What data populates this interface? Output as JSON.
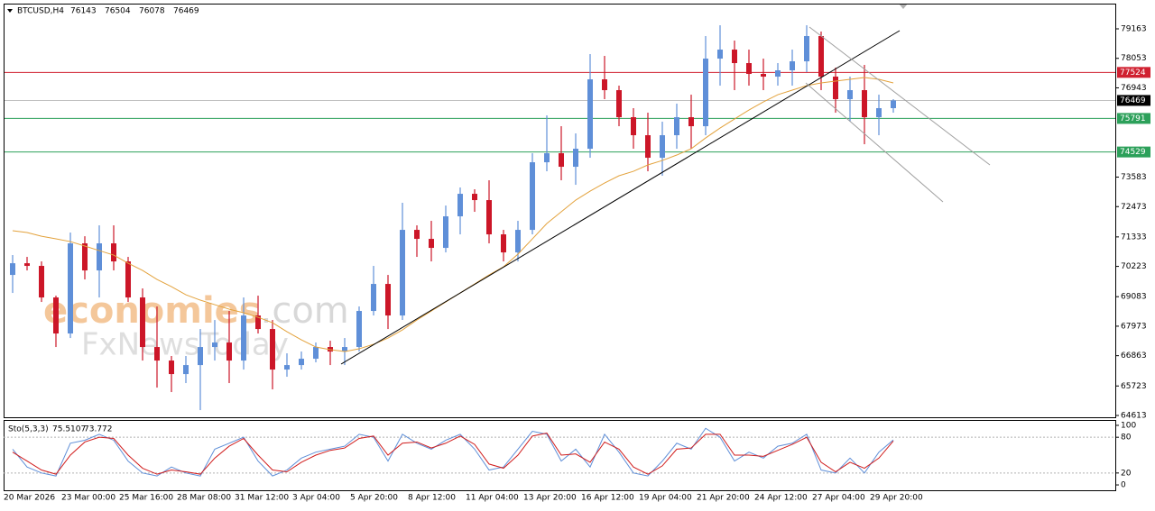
{
  "chart_data": [
    {
      "type": "candlestick",
      "title": "BTCUSD,H4",
      "header_values": [
        76143,
        76504,
        76078,
        76469
      ],
      "categories": [
        "20 Mar 2026",
        null,
        null,
        null,
        "23 Mar 00:00",
        null,
        null,
        null,
        "25 Mar 16:00",
        null,
        null,
        null,
        "28 Mar 08:00",
        null,
        null,
        null,
        "31 Mar 12:00",
        null,
        null,
        null,
        "3 Apr 04:00",
        null,
        null,
        null,
        "5 Apr 20:00",
        null,
        null,
        null,
        "8 Apr 12:00",
        null,
        null,
        null,
        "11 Apr 04:00",
        null,
        null,
        null,
        "13 Apr 20:00",
        null,
        null,
        null,
        "16 Apr 12:00",
        null,
        null,
        null,
        "19 Apr 04:00",
        null,
        null,
        null,
        "21 Apr 20:00",
        null,
        null,
        null,
        "24 Apr 12:00",
        null,
        null,
        null,
        "27 Apr 04:00",
        null,
        null,
        null,
        "29 Apr 20:00",
        null
      ],
      "open": [
        69902,
        70342,
        70242,
        69054,
        67698,
        71090,
        70072,
        71090,
        70411,
        69054,
        67189,
        66680,
        66171,
        66510,
        67189,
        67358,
        66680,
        68376,
        67867,
        66341,
        66510,
        66748,
        67189,
        67019,
        67189,
        68546,
        69563,
        68376,
        71598,
        71259,
        70920,
        72107,
        72955,
        72718,
        71429,
        70750,
        71598,
        74142,
        74482,
        73973,
        74651,
        77263,
        76856,
        75838,
        75160,
        74312,
        75160,
        75838,
        75499,
        78043,
        78382,
        77874,
        77467,
        77365,
        77602,
        77941,
        78891,
        77365,
        76517,
        76856,
        75838,
        76178
      ],
      "high": [
        70649,
        70581,
        70411,
        69122,
        71497,
        71358,
        71768,
        71768,
        70581,
        69394,
        68715,
        66851,
        66851,
        67867,
        68206,
        68546,
        69054,
        69122,
        68206,
        66951,
        67019,
        67358,
        67426,
        67528,
        68715,
        70242,
        69902,
        72616,
        71768,
        71938,
        72514,
        73193,
        73125,
        73464,
        71598,
        71938,
        74482,
        75906,
        75499,
        75228,
        78213,
        78145,
        77026,
        76178,
        76008,
        75669,
        76347,
        76686,
        78891,
        79298,
        78722,
        78382,
        78043,
        77874,
        78382,
        79298,
        79061,
        77704,
        77365,
        77806,
        76686,
        76517
      ],
      "low": [
        69224,
        70072,
        68885,
        67189,
        67528,
        69733,
        69054,
        70072,
        68885,
        66680,
        65662,
        65493,
        65832,
        64814,
        66680,
        65832,
        66341,
        67698,
        65595,
        66070,
        66341,
        66612,
        66510,
        66510,
        67019,
        68376,
        67867,
        68206,
        70581,
        70411,
        70750,
        71429,
        72277,
        71090,
        70411,
        70411,
        71429,
        73803,
        73464,
        73294,
        74312,
        76517,
        75499,
        74651,
        73803,
        73634,
        74651,
        74651,
        75160,
        77026,
        76856,
        77026,
        76856,
        77026,
        77026,
        77534,
        76856,
        76008,
        75669,
        74821,
        75160,
        76008
      ],
      "close": [
        70342,
        70242,
        69054,
        67698,
        71090,
        70072,
        71090,
        70411,
        69054,
        67189,
        66680,
        66171,
        66510,
        67189,
        67358,
        66680,
        68376,
        67867,
        66341,
        66510,
        66748,
        67189,
        67019,
        67189,
        68546,
        69563,
        68376,
        71598,
        71259,
        70920,
        72107,
        72955,
        72718,
        71429,
        70750,
        71598,
        74142,
        74482,
        73973,
        74651,
        77263,
        76856,
        75838,
        75160,
        74312,
        75160,
        75838,
        75499,
        78043,
        78382,
        77874,
        77467,
        77365,
        77602,
        77941,
        78891,
        77365,
        76517,
        76856,
        75838,
        76178,
        76469
      ],
      "up_color": "#5f8fd8",
      "down_color": "#cc1628",
      "ma": {
        "color": "#e3a23c",
        "values": [
          71564,
          71497,
          71358,
          71259,
          71157,
          70988,
          70818,
          70649,
          70342,
          70072,
          69733,
          69461,
          69156,
          68953,
          68783,
          68613,
          68478,
          68308,
          68105,
          67765,
          67460,
          67189,
          67087,
          67019,
          67121,
          67291,
          67528,
          67833,
          68206,
          68546,
          68885,
          69224,
          69563,
          69902,
          70208,
          70683,
          71259,
          71836,
          72277,
          72718,
          73057,
          73362,
          73634,
          73803,
          74041,
          74210,
          74414,
          74651,
          75058,
          75431,
          75771,
          76110,
          76415,
          76686,
          76856,
          77026,
          77127,
          77195,
          77263,
          77331,
          77263,
          77127
        ]
      },
      "ylim": [
        64545,
        80113
      ],
      "yticks": [
        79163,
        78053,
        76943,
        73583,
        72473,
        71333,
        70223,
        69083,
        67973,
        66863,
        65723,
        64613
      ],
      "price_lines": [
        {
          "value": 77524,
          "color": "#d02030",
          "label_bg": "#d02030"
        },
        {
          "value": 76469,
          "color": "#c0c0c0",
          "label_bg": "#000000"
        },
        {
          "value": 75791,
          "color": "#2ca05a",
          "label_bg": "#2ca05a"
        },
        {
          "value": 74529,
          "color": "#2ca05a",
          "label_bg": "#2ca05a"
        }
      ],
      "watermark": {
        "brand": "economies",
        "suffix": ".com",
        "second": "FxNewsToday"
      }
    },
    {
      "type": "stochastic",
      "title": "Sto(5,3,3)",
      "series": [
        {
          "color": "#5f8fd8",
          "values": [
            60,
            30,
            20,
            15,
            70,
            75,
            85,
            75,
            40,
            20,
            15,
            30,
            20,
            15,
            60,
            70,
            80,
            40,
            15,
            25,
            45,
            55,
            60,
            65,
            85,
            80,
            40,
            85,
            70,
            60,
            75,
            85,
            60,
            25,
            30,
            60,
            90,
            85,
            40,
            60,
            30,
            85,
            55,
            20,
            15,
            40,
            70,
            60,
            95,
            80,
            40,
            55,
            45,
            65,
            70,
            85,
            25,
            20,
            45,
            20,
            55,
            75.5107
          ]
        },
        {
          "color": "#d01c1c",
          "values": [
            55,
            40,
            25,
            18,
            50,
            72,
            80,
            78,
            50,
            28,
            18,
            25,
            22,
            18,
            45,
            65,
            78,
            50,
            25,
            22,
            38,
            50,
            58,
            62,
            78,
            82,
            50,
            70,
            72,
            62,
            70,
            82,
            68,
            35,
            28,
            50,
            82,
            87,
            50,
            52,
            38,
            72,
            60,
            30,
            18,
            32,
            60,
            62,
            85,
            85,
            50,
            50,
            48,
            58,
            68,
            80,
            38,
            22,
            38,
            28,
            45,
            73.772
          ]
        }
      ],
      "ylim": [
        -9,
        109
      ],
      "yticks": [
        100,
        80,
        20,
        0
      ],
      "levels": [
        80,
        20
      ]
    }
  ]
}
